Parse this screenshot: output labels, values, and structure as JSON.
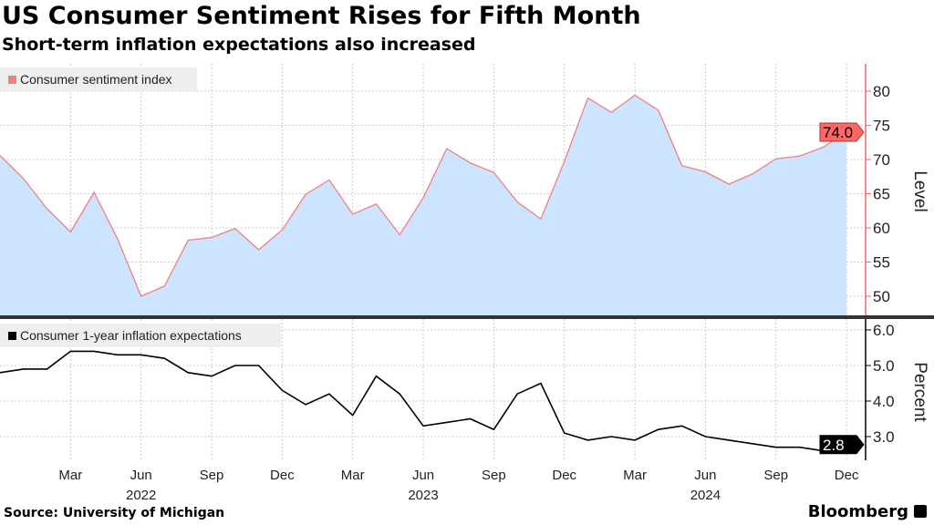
{
  "title": "US Consumer Sentiment Rises for Fifth Month",
  "subtitle": "Short-term inflation expectations also increased",
  "source": "Source: University of Michigan",
  "brand": "Bloomberg",
  "chart_data": [
    {
      "type": "area",
      "legend": "Consumer sentiment index",
      "ylabel": "Level",
      "ylim": [
        46.5,
        83.5
      ],
      "yticks": [
        50,
        55,
        60,
        65,
        70,
        75,
        80
      ],
      "color_line": "#f08080",
      "color_fill": "#cce4ff",
      "last_label": "74.0",
      "last_label_color": "#ff6666",
      "x": [
        "2021-12",
        "2022-01",
        "2022-02",
        "2022-03",
        "2022-04",
        "2022-05",
        "2022-06",
        "2022-07",
        "2022-08",
        "2022-09",
        "2022-10",
        "2022-11",
        "2022-12",
        "2023-01",
        "2023-02",
        "2023-03",
        "2023-04",
        "2023-05",
        "2023-06",
        "2023-07",
        "2023-08",
        "2023-09",
        "2023-10",
        "2023-11",
        "2023-12",
        "2024-01",
        "2024-02",
        "2024-03",
        "2024-04",
        "2024-05",
        "2024-06",
        "2024-07",
        "2024-08",
        "2024-09",
        "2024-10",
        "2024-11",
        "2024-12"
      ],
      "values": [
        70.6,
        67.2,
        62.8,
        59.4,
        65.2,
        58.4,
        50.0,
        51.5,
        58.2,
        58.6,
        59.9,
        56.8,
        59.7,
        64.9,
        67.0,
        62.0,
        63.5,
        59.0,
        64.4,
        71.6,
        69.5,
        68.1,
        63.8,
        61.3,
        69.7,
        79.0,
        76.9,
        79.4,
        77.2,
        69.1,
        68.2,
        66.4,
        67.9,
        70.1,
        70.5,
        71.8,
        74.0
      ]
    },
    {
      "type": "line",
      "legend": "Consumer 1-year inflation expectations",
      "ylabel": "Percent",
      "ylim": [
        2.2,
        6.3
      ],
      "yticks": [
        "3.0",
        "4.0",
        "5.0",
        "6.0"
      ],
      "color_line": "#000000",
      "last_label": "2.8",
      "last_label_color": "#000000",
      "values": [
        4.8,
        4.9,
        4.9,
        5.4,
        5.4,
        5.3,
        5.3,
        5.2,
        4.8,
        4.7,
        5.0,
        5.0,
        4.3,
        3.9,
        4.2,
        3.6,
        4.7,
        4.2,
        3.3,
        3.4,
        3.5,
        3.2,
        4.2,
        4.5,
        3.1,
        2.9,
        3.0,
        2.9,
        3.2,
        3.3,
        3.0,
        2.9,
        2.8,
        2.7,
        2.7,
        2.6,
        2.8
      ]
    }
  ],
  "xaxis": {
    "month_ticks": [
      "Mar",
      "Jun",
      "Sep",
      "Dec",
      "Mar",
      "Jun",
      "Sep",
      "Dec",
      "Mar",
      "Jun",
      "Sep",
      "Dec"
    ],
    "years": [
      "2022",
      "2023",
      "2024"
    ]
  }
}
